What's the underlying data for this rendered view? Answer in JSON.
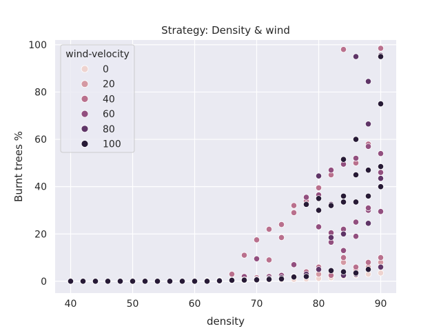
{
  "chart_data": {
    "type": "scatter",
    "title": "Strategy: Density & wind",
    "xlabel": "density",
    "ylabel": "Burnt trees %",
    "xlim": [
      37.5,
      92.5
    ],
    "ylim": [
      -5,
      102
    ],
    "xticks": [
      40,
      50,
      60,
      70,
      80,
      90
    ],
    "yticks": [
      0,
      20,
      40,
      60,
      80,
      100
    ],
    "grid": true,
    "background": "#eaeaf2",
    "legend": {
      "title": "wind-velocity",
      "placement": "top-left",
      "entries": [
        {
          "label": "0",
          "color": "#eed3cf"
        },
        {
          "label": "20",
          "color": "#d499a3"
        },
        {
          "label": "40",
          "color": "#b9708d"
        },
        {
          "label": "60",
          "color": "#924f7f"
        },
        {
          "label": "80",
          "color": "#5f3567"
        },
        {
          "label": "100",
          "color": "#271a36"
        }
      ]
    },
    "series": [
      {
        "name": "0",
        "color": "#eed3cf",
        "points": [
          [
            40,
            0
          ],
          [
            42,
            0
          ],
          [
            44,
            0
          ],
          [
            46,
            0
          ],
          [
            48,
            0
          ],
          [
            50,
            0
          ],
          [
            52,
            0
          ],
          [
            54,
            0
          ],
          [
            56,
            0
          ],
          [
            58,
            0
          ],
          [
            60,
            0
          ],
          [
            62,
            0
          ],
          [
            64,
            0
          ],
          [
            66,
            0.2
          ],
          [
            68,
            0.3
          ],
          [
            70,
            0.4
          ],
          [
            72,
            0.5
          ],
          [
            74,
            0.6
          ],
          [
            76,
            0.8
          ],
          [
            78,
            1
          ],
          [
            80,
            1.2
          ],
          [
            82,
            1.5
          ],
          [
            84,
            2
          ],
          [
            86,
            2.5
          ],
          [
            88,
            3
          ],
          [
            90,
            3.5
          ]
        ]
      },
      {
        "name": "20",
        "color": "#d499a3",
        "points": [
          [
            40,
            0
          ],
          [
            42,
            0
          ],
          [
            44,
            0
          ],
          [
            46,
            0
          ],
          [
            48,
            0
          ],
          [
            50,
            0
          ],
          [
            52,
            0
          ],
          [
            54,
            0
          ],
          [
            56,
            0
          ],
          [
            58,
            0
          ],
          [
            60,
            0
          ],
          [
            62,
            0.2
          ],
          [
            64,
            0.3
          ],
          [
            66,
            0.5
          ],
          [
            68,
            0.8
          ],
          [
            70,
            1
          ],
          [
            72,
            1.2
          ],
          [
            74,
            1.5
          ],
          [
            76,
            2
          ],
          [
            78,
            2.5
          ],
          [
            80,
            3
          ],
          [
            82,
            3.5
          ],
          [
            84,
            8
          ],
          [
            86,
            5
          ],
          [
            88,
            6
          ],
          [
            90,
            8
          ]
        ]
      },
      {
        "name": "40",
        "color": "#b9708d",
        "points": [
          [
            40,
            0
          ],
          [
            42,
            0
          ],
          [
            44,
            0
          ],
          [
            46,
            0
          ],
          [
            48,
            0
          ],
          [
            50,
            0
          ],
          [
            52,
            0
          ],
          [
            54,
            0
          ],
          [
            56,
            0
          ],
          [
            58,
            0
          ],
          [
            60,
            0
          ],
          [
            62,
            0.3
          ],
          [
            64,
            0.5
          ],
          [
            66,
            3
          ],
          [
            68,
            11
          ],
          [
            70,
            17.5
          ],
          [
            72,
            22
          ],
          [
            74,
            24
          ],
          [
            76,
            32
          ],
          [
            78,
            34
          ],
          [
            80,
            39.5
          ],
          [
            82,
            45
          ],
          [
            84,
            98
          ],
          [
            86,
            50
          ],
          [
            88,
            58
          ],
          [
            90,
            98.5
          ],
          [
            70,
            1.5
          ],
          [
            72,
            9
          ],
          [
            74,
            18.5
          ],
          [
            76,
            29
          ],
          [
            78,
            4
          ],
          [
            80,
            6
          ],
          [
            82,
            2.5
          ],
          [
            84,
            10
          ],
          [
            86,
            6
          ],
          [
            88,
            8
          ],
          [
            90,
            10
          ]
        ]
      },
      {
        "name": "60",
        "color": "#924f7f",
        "points": [
          [
            40,
            0
          ],
          [
            42,
            0
          ],
          [
            44,
            0
          ],
          [
            46,
            0
          ],
          [
            48,
            0
          ],
          [
            50,
            0
          ],
          [
            52,
            0
          ],
          [
            54,
            0
          ],
          [
            56,
            0
          ],
          [
            58,
            0
          ],
          [
            60,
            0
          ],
          [
            62,
            0.2
          ],
          [
            64,
            0.4
          ],
          [
            66,
            0.6
          ],
          [
            68,
            2
          ],
          [
            70,
            9.5
          ],
          [
            72,
            2
          ],
          [
            74,
            2.5
          ],
          [
            76,
            7
          ],
          [
            78,
            35.5
          ],
          [
            80,
            36.5
          ],
          [
            82,
            47
          ],
          [
            84,
            49.5
          ],
          [
            86,
            52
          ],
          [
            88,
            57
          ],
          [
            90,
            54
          ],
          [
            80,
            23
          ],
          [
            82,
            16.5
          ],
          [
            84,
            22
          ],
          [
            86,
            19
          ],
          [
            88,
            30
          ],
          [
            90,
            29.5
          ],
          [
            82,
            20.5
          ],
          [
            84,
            13
          ],
          [
            86,
            25
          ],
          [
            88,
            31
          ],
          [
            90,
            46
          ]
        ]
      },
      {
        "name": "80",
        "color": "#5f3567",
        "points": [
          [
            40,
            0
          ],
          [
            42,
            0
          ],
          [
            44,
            0
          ],
          [
            46,
            0
          ],
          [
            48,
            0
          ],
          [
            50,
            0
          ],
          [
            52,
            0
          ],
          [
            54,
            0
          ],
          [
            56,
            0
          ],
          [
            58,
            0
          ],
          [
            60,
            0
          ],
          [
            62,
            0
          ],
          [
            64,
            0.3
          ],
          [
            66,
            0.5
          ],
          [
            68,
            0.7
          ],
          [
            70,
            0.9
          ],
          [
            72,
            1.2
          ],
          [
            74,
            1.5
          ],
          [
            76,
            2
          ],
          [
            78,
            3
          ],
          [
            80,
            44.5
          ],
          [
            82,
            32.5
          ],
          [
            84,
            20
          ],
          [
            86,
            95
          ],
          [
            88,
            84.5
          ],
          [
            90,
            95.5
          ],
          [
            80,
            5
          ],
          [
            82,
            18.5
          ],
          [
            84,
            2.5
          ],
          [
            86,
            3
          ],
          [
            88,
            66.5
          ],
          [
            90,
            43.5
          ],
          [
            88,
            24.5
          ],
          [
            90,
            6
          ]
        ]
      },
      {
        "name": "100",
        "color": "#271a36",
        "points": [
          [
            40,
            0
          ],
          [
            42,
            0
          ],
          [
            44,
            0
          ],
          [
            46,
            0
          ],
          [
            48,
            0
          ],
          [
            50,
            0
          ],
          [
            52,
            0
          ],
          [
            54,
            0
          ],
          [
            56,
            0
          ],
          [
            58,
            0
          ],
          [
            60,
            0
          ],
          [
            62,
            0
          ],
          [
            64,
            0.2
          ],
          [
            66,
            0.4
          ],
          [
            68,
            0.5
          ],
          [
            70,
            0.6
          ],
          [
            72,
            0.8
          ],
          [
            74,
            1
          ],
          [
            76,
            1.8
          ],
          [
            78,
            32.5
          ],
          [
            80,
            35
          ],
          [
            82,
            32
          ],
          [
            84,
            51.5
          ],
          [
            86,
            60
          ],
          [
            88,
            47
          ],
          [
            90,
            75
          ],
          [
            78,
            2
          ],
          [
            80,
            30
          ],
          [
            82,
            4.5
          ],
          [
            84,
            36
          ],
          [
            86,
            45
          ],
          [
            88,
            36
          ],
          [
            90,
            48.5
          ],
          [
            84,
            33.5
          ],
          [
            86,
            33.5
          ],
          [
            90,
            40
          ],
          [
            84,
            4
          ],
          [
            86,
            3.5
          ],
          [
            88,
            5
          ],
          [
            90,
            95
          ]
        ]
      }
    ]
  }
}
